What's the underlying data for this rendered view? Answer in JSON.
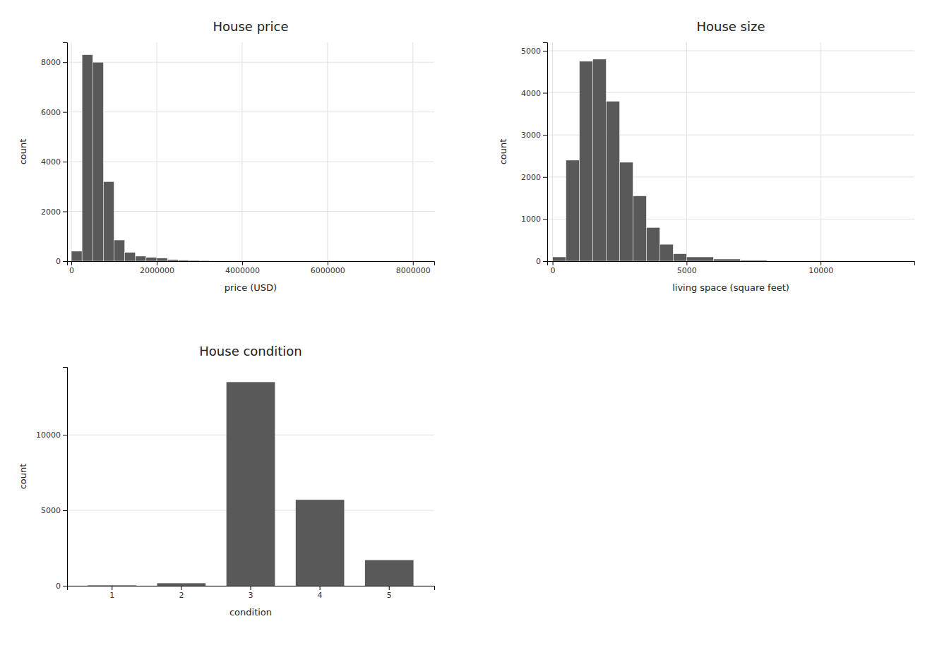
{
  "chart_data": [
    {
      "type": "histogram",
      "title": "House price",
      "x_label": "price (USD)",
      "y_label": "count",
      "bins": [
        0,
        250000,
        500000,
        750000,
        1000000,
        1250000,
        1500000,
        1750000,
        2000000,
        2250000,
        2500000,
        2750000,
        3000000,
        3250000,
        3500000,
        3750000,
        4000000,
        4500000,
        5000000,
        6000000,
        7000000,
        8000000
      ],
      "values": [
        400,
        8300,
        8000,
        3200,
        850,
        350,
        200,
        150,
        120,
        60,
        40,
        30,
        25,
        20,
        15,
        10,
        10,
        10,
        8,
        5,
        3
      ],
      "color": "#595959",
      "xlim": [
        -100000,
        8500000
      ],
      "xticks": [
        0,
        2000000,
        4000000,
        6000000,
        8000000
      ],
      "ylim": [
        0,
        8800
      ],
      "yticks": [
        0,
        2000,
        4000,
        6000,
        8000
      ],
      "grid": true
    },
    {
      "type": "histogram",
      "title": "House size",
      "x_label": "living space (square feet)",
      "y_label": "count",
      "bins": [
        0,
        500,
        1000,
        1500,
        2000,
        2500,
        3000,
        3500,
        4000,
        4500,
        5000,
        6000,
        7000,
        8000,
        13000
      ],
      "values": [
        100,
        2400,
        4750,
        4800,
        3800,
        2350,
        1550,
        800,
        400,
        175,
        100,
        50,
        20,
        10
      ],
      "color": "#595959",
      "xlim": [
        -200,
        13500
      ],
      "xticks": [
        0,
        5000,
        10000
      ],
      "ylim": [
        0,
        5200
      ],
      "yticks": [
        0,
        1000,
        2000,
        3000,
        4000,
        5000
      ],
      "grid": true
    },
    {
      "type": "bar",
      "title": "House condition",
      "x_label": "condition",
      "y_label": "count",
      "categories": [
        "1",
        "2",
        "3",
        "4",
        "5"
      ],
      "values": [
        30,
        170,
        13500,
        5700,
        1700
      ],
      "color": "#595959",
      "ylim": [
        0,
        14500
      ],
      "yticks": [
        0,
        5000,
        10000
      ],
      "grid": true
    }
  ]
}
